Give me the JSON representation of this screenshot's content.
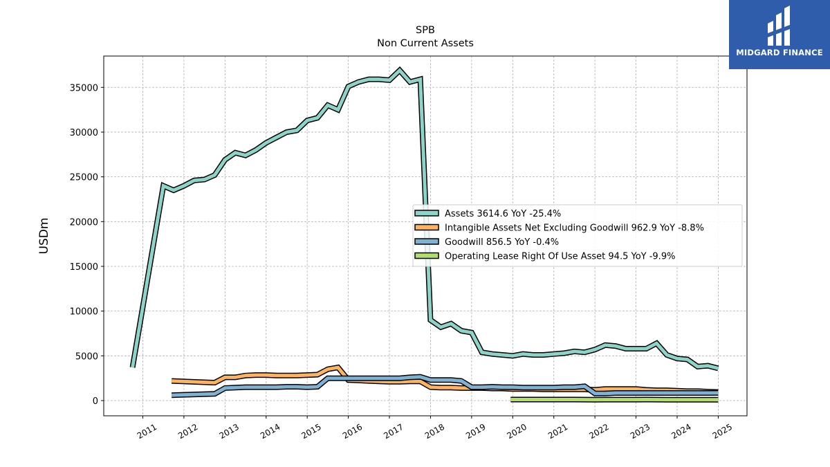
{
  "chart_data": {
    "type": "line",
    "title": "SPB",
    "subtitle": "Non Current  Assets",
    "ylabel": "USDm",
    "xlabel": "",
    "ylim": [
      -1700,
      38500
    ],
    "xlim": [
      2010.05,
      2025.7
    ],
    "yticks": [
      0,
      5000,
      10000,
      15000,
      20000,
      25000,
      30000,
      35000
    ],
    "xticks": [
      "2011",
      "2012",
      "2013",
      "2014",
      "2015",
      "2016",
      "2017",
      "2018",
      "2019",
      "2020",
      "2021",
      "2022",
      "2023",
      "2024",
      "2025"
    ],
    "grid": true,
    "legend_position": "center-right",
    "series": [
      {
        "name": "Assets",
        "legend": "Assets  3614.6 YoY -25.4%",
        "color": "#8dd3c7",
        "x": [
          2010.75,
          2011.5,
          2011.75,
          2012.0,
          2012.25,
          2012.5,
          2012.75,
          2013.0,
          2013.25,
          2013.5,
          2013.75,
          2014.0,
          2014.25,
          2014.5,
          2014.75,
          2015.0,
          2015.25,
          2015.5,
          2015.75,
          2016.0,
          2016.25,
          2016.5,
          2016.75,
          2017.0,
          2017.25,
          2017.5,
          2017.75,
          2018.0,
          2018.25,
          2018.5,
          2018.75,
          2019.0,
          2019.25,
          2019.5,
          2019.75,
          2020.0,
          2020.25,
          2020.5,
          2020.75,
          2021.0,
          2021.25,
          2021.5,
          2021.75,
          2022.0,
          2022.25,
          2022.5,
          2022.75,
          2023.0,
          2023.25,
          2023.5,
          2023.75,
          2024.0,
          2024.25,
          2024.5,
          2024.75,
          2025.0
        ],
        "y": [
          3700,
          24000,
          23500,
          24000,
          24600,
          24700,
          25200,
          26900,
          27700,
          27400,
          28000,
          28800,
          29400,
          30000,
          30200,
          31300,
          31600,
          33000,
          32500,
          35100,
          35600,
          35900,
          35900,
          35800,
          36900,
          35600,
          35900,
          9000,
          8200,
          8600,
          7800,
          7600,
          5400,
          5200,
          5100,
          5000,
          5200,
          5100,
          5100,
          5200,
          5300,
          5500,
          5400,
          5700,
          6200,
          6100,
          5800,
          5800,
          5800,
          6400,
          5100,
          4700,
          4600,
          3800,
          3900,
          3600
        ]
      },
      {
        "name": "Intangible Assets Net Excluding Goodwill",
        "legend": "Intangible Assets Net Excluding Goodwill  962.9 YoY -8.8%",
        "color": "#fdb462",
        "x": [
          2011.7,
          2012.75,
          2013.0,
          2013.25,
          2013.5,
          2013.75,
          2014.0,
          2014.25,
          2014.5,
          2014.75,
          2015.0,
          2015.25,
          2015.5,
          2015.75,
          2016.0,
          2016.25,
          2016.5,
          2016.75,
          2017.0,
          2017.25,
          2017.5,
          2017.75,
          2018.0,
          2018.25,
          2018.5,
          2018.75,
          2019.0,
          2019.25,
          2019.5,
          2019.75,
          2020.0,
          2020.25,
          2020.5,
          2020.75,
          2021.0,
          2021.25,
          2021.5,
          2021.75,
          2022.0,
          2022.25,
          2022.5,
          2022.75,
          2023.0,
          2023.25,
          2023.5,
          2023.75,
          2024.0,
          2024.25,
          2024.5,
          2024.75,
          2025.0
        ],
        "y": [
          2200,
          2000,
          2600,
          2600,
          2800,
          2850,
          2850,
          2800,
          2800,
          2800,
          2850,
          2900,
          3500,
          3700,
          2300,
          2250,
          2200,
          2150,
          2100,
          2100,
          2150,
          2150,
          1500,
          1450,
          1450,
          1400,
          1400,
          1400,
          1350,
          1350,
          1300,
          1300,
          1300,
          1250,
          1250,
          1250,
          1250,
          1250,
          1200,
          1300,
          1300,
          1300,
          1300,
          1200,
          1150,
          1150,
          1100,
          1050,
          1050,
          1000,
          960
        ]
      },
      {
        "name": "Goodwill",
        "legend": "Goodwill  856.5 YoY -0.4%",
        "color": "#80b1d3",
        "x": [
          2011.7,
          2012.75,
          2013.0,
          2013.25,
          2013.5,
          2013.75,
          2014.0,
          2014.25,
          2014.5,
          2014.75,
          2015.0,
          2015.25,
          2015.5,
          2015.75,
          2016.0,
          2016.25,
          2016.5,
          2016.75,
          2017.0,
          2017.25,
          2017.5,
          2017.75,
          2018.0,
          2018.25,
          2018.5,
          2018.75,
          2019.0,
          2019.25,
          2019.5,
          2019.75,
          2020.0,
          2020.25,
          2020.5,
          2020.75,
          2021.0,
          2021.25,
          2021.5,
          2021.75,
          2022.0,
          2022.25,
          2022.5,
          2022.75,
          2023.0,
          2023.25,
          2023.5,
          2023.75,
          2024.0,
          2024.25,
          2024.5,
          2024.75,
          2025.0
        ],
        "y": [
          600,
          750,
          1400,
          1450,
          1500,
          1500,
          1500,
          1500,
          1550,
          1550,
          1500,
          1550,
          2500,
          2500,
          2500,
          2500,
          2500,
          2500,
          2500,
          2500,
          2600,
          2650,
          2300,
          2300,
          2300,
          2200,
          1500,
          1500,
          1550,
          1500,
          1500,
          1450,
          1450,
          1450,
          1450,
          1500,
          1500,
          1600,
          800,
          800,
          850,
          850,
          850,
          850,
          850,
          850,
          850,
          850,
          850,
          850,
          856
        ]
      },
      {
        "name": "Operating Lease Right Of Use Asset",
        "legend": "Operating Lease Right Of Use Asset  94.5 YoY -9.9%",
        "color": "#b3de69",
        "x": [
          2019.95,
          2020.25,
          2020.5,
          2020.75,
          2021.0,
          2021.25,
          2021.5,
          2021.75,
          2022.0,
          2022.25,
          2022.5,
          2022.75,
          2023.0,
          2023.25,
          2023.5,
          2023.75,
          2024.0,
          2024.25,
          2024.5,
          2024.75,
          2025.0
        ],
        "y": [
          120,
          115,
          115,
          120,
          115,
          120,
          120,
          110,
          105,
          110,
          110,
          110,
          110,
          120,
          110,
          105,
          105,
          100,
          100,
          95,
          95
        ]
      }
    ]
  },
  "logo": {
    "text": "MIDGARD FINANCE",
    "bg_color": "#2f5dab"
  }
}
